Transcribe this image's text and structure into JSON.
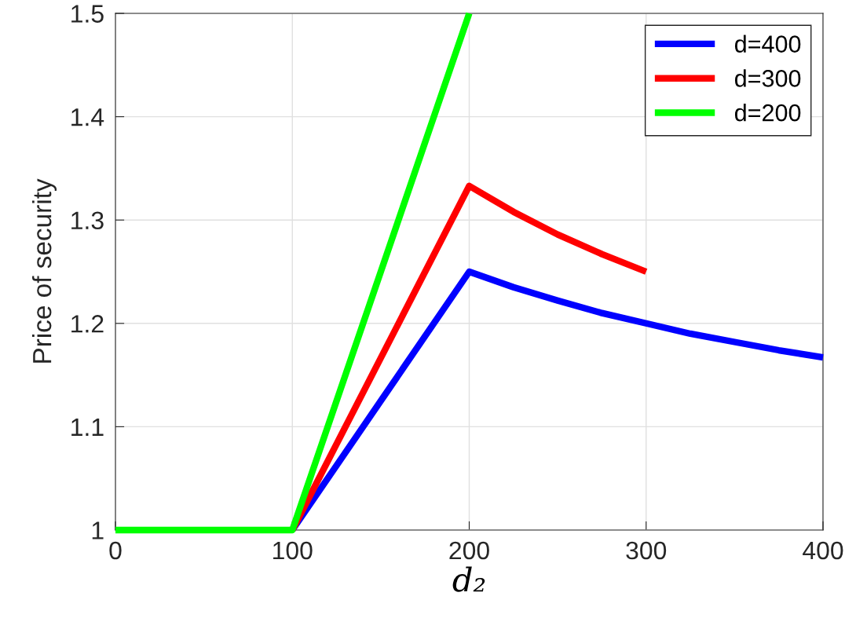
{
  "chart_data": {
    "type": "line",
    "xlabel": "d₂",
    "ylabel": "Price of security",
    "xlim": [
      0,
      400
    ],
    "ylim": [
      1,
      1.5
    ],
    "xticks": [
      0,
      100,
      200,
      300,
      400
    ],
    "yticks": [
      1,
      1.1,
      1.2,
      1.3,
      1.4,
      1.5
    ],
    "grid": true,
    "legend": "top right",
    "marker": "none",
    "line_style": "solid",
    "series": [
      {
        "name": "d=400",
        "color": "#0000ff",
        "x": [
          100,
          200,
          225,
          250,
          275,
          300,
          325,
          350,
          375,
          400
        ],
        "values": [
          1,
          1.25,
          1.235,
          1.222,
          1.21,
          1.2,
          1.19,
          1.182,
          1.174,
          1.167
        ]
      },
      {
        "name": "d=300",
        "color": "#ff0000",
        "x": [
          100,
          200,
          225,
          250,
          275,
          300
        ],
        "values": [
          1,
          1.333,
          1.308,
          1.286,
          1.267,
          1.25
        ]
      },
      {
        "name": "d=200",
        "color": "#00ff00",
        "x": [
          0,
          100,
          200
        ],
        "values": [
          1,
          1,
          1.5
        ]
      }
    ]
  }
}
